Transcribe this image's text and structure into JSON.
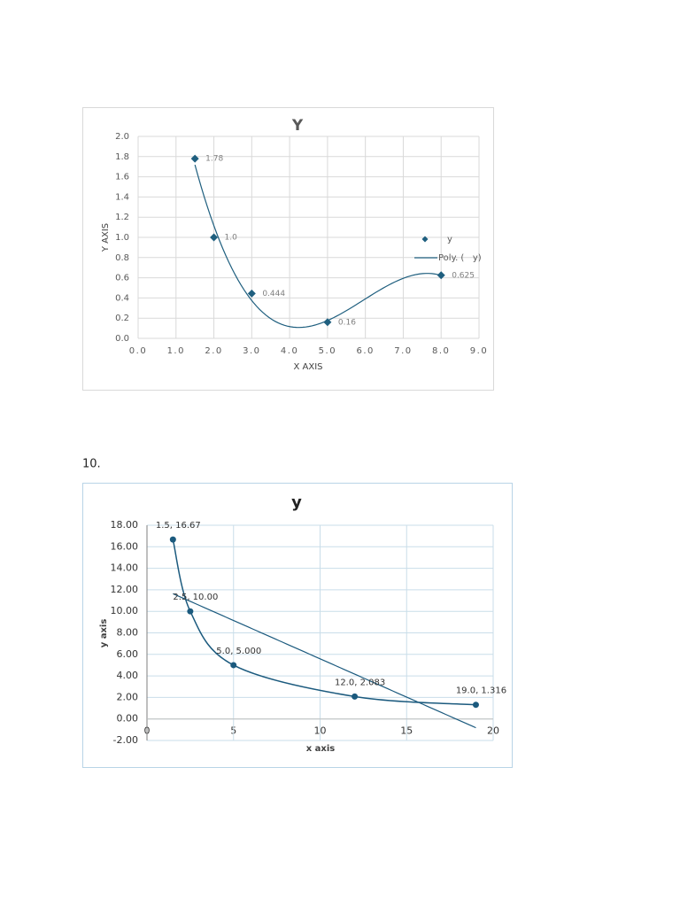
{
  "section_label": "10.",
  "chart_data": [
    {
      "type": "scatter",
      "title": "Y",
      "x_label": "X AXIS",
      "y_label": "Y AXIS",
      "series": [
        {
          "name": "y",
          "color": "#1f5f7f",
          "marker": "diamond",
          "line": "none",
          "x": [
            1.5,
            2,
            3,
            5,
            8
          ],
          "values": [
            1.78,
            1.0,
            0.444,
            0.16,
            0.625
          ],
          "value_labels": [
            "1.78",
            "1.0",
            "0.444",
            "0.16",
            "0.625"
          ]
        }
      ],
      "trendline": {
        "name": "Poly. (   y)",
        "order": 3,
        "color": "#1f5f7f"
      },
      "xlim": [
        0,
        9
      ],
      "xticks": [
        {
          "value": 0,
          "label": "0.0"
        },
        {
          "value": 1,
          "label": "1.0"
        },
        {
          "value": 2,
          "label": "2.0"
        },
        {
          "value": 3,
          "label": "3.0"
        },
        {
          "value": 4,
          "label": "4.0"
        },
        {
          "value": 5,
          "label": "5.0"
        },
        {
          "value": 6,
          "label": "6.0"
        },
        {
          "value": 7,
          "label": "7.0"
        },
        {
          "value": 8,
          "label": "8.0"
        },
        {
          "value": 9,
          "label": "9.0"
        }
      ],
      "ylim": [
        0,
        2
      ],
      "yticks": [
        {
          "value": 0,
          "label": "0.0"
        },
        0.2,
        0.4,
        0.6,
        0.8,
        {
          "value": 1,
          "label": "1.0"
        },
        1.2,
        1.4,
        1.6,
        1.8,
        {
          "value": 2,
          "label": "2.0"
        }
      ],
      "grid": true,
      "legend": "right"
    },
    {
      "type": "scatter",
      "title": "y",
      "x_label": "x axis",
      "y_label": "y axis",
      "series": [
        {
          "color": "#1b5a7e",
          "marker": "circle",
          "line": "smooth",
          "x": [
            1.5,
            2.5,
            5,
            12,
            19
          ],
          "values": [
            16.67,
            10.0,
            5.0,
            2.083,
            1.316
          ],
          "value_labels": [
            "1.5, 16.67",
            "2.5, 10.00",
            "5.0, 5.000",
            "12.0, 2.083",
            "19.0, 1.316"
          ]
        }
      ],
      "trendline": {
        "order": 1,
        "color": "#1b5a7e"
      },
      "xlim": [
        0,
        20
      ],
      "xticks": [
        0,
        5,
        10,
        15,
        20
      ],
      "ylim": [
        -2,
        18
      ],
      "yticks": [
        {
          "value": -2,
          "label": "-2.00"
        },
        {
          "value": 0,
          "label": "0.00"
        },
        {
          "value": 2,
          "label": "2.00"
        },
        {
          "value": 4,
          "label": "4.00"
        },
        {
          "value": 6,
          "label": "6.00"
        },
        {
          "value": 8,
          "label": "8.00"
        },
        {
          "value": 10,
          "label": "10.00"
        },
        {
          "value": 12,
          "label": "12.00"
        },
        {
          "value": 14,
          "label": "14.00"
        },
        {
          "value": 16,
          "label": "16.00"
        },
        {
          "value": 18,
          "label": "18.00"
        }
      ],
      "grid": true,
      "legend": "none"
    }
  ]
}
